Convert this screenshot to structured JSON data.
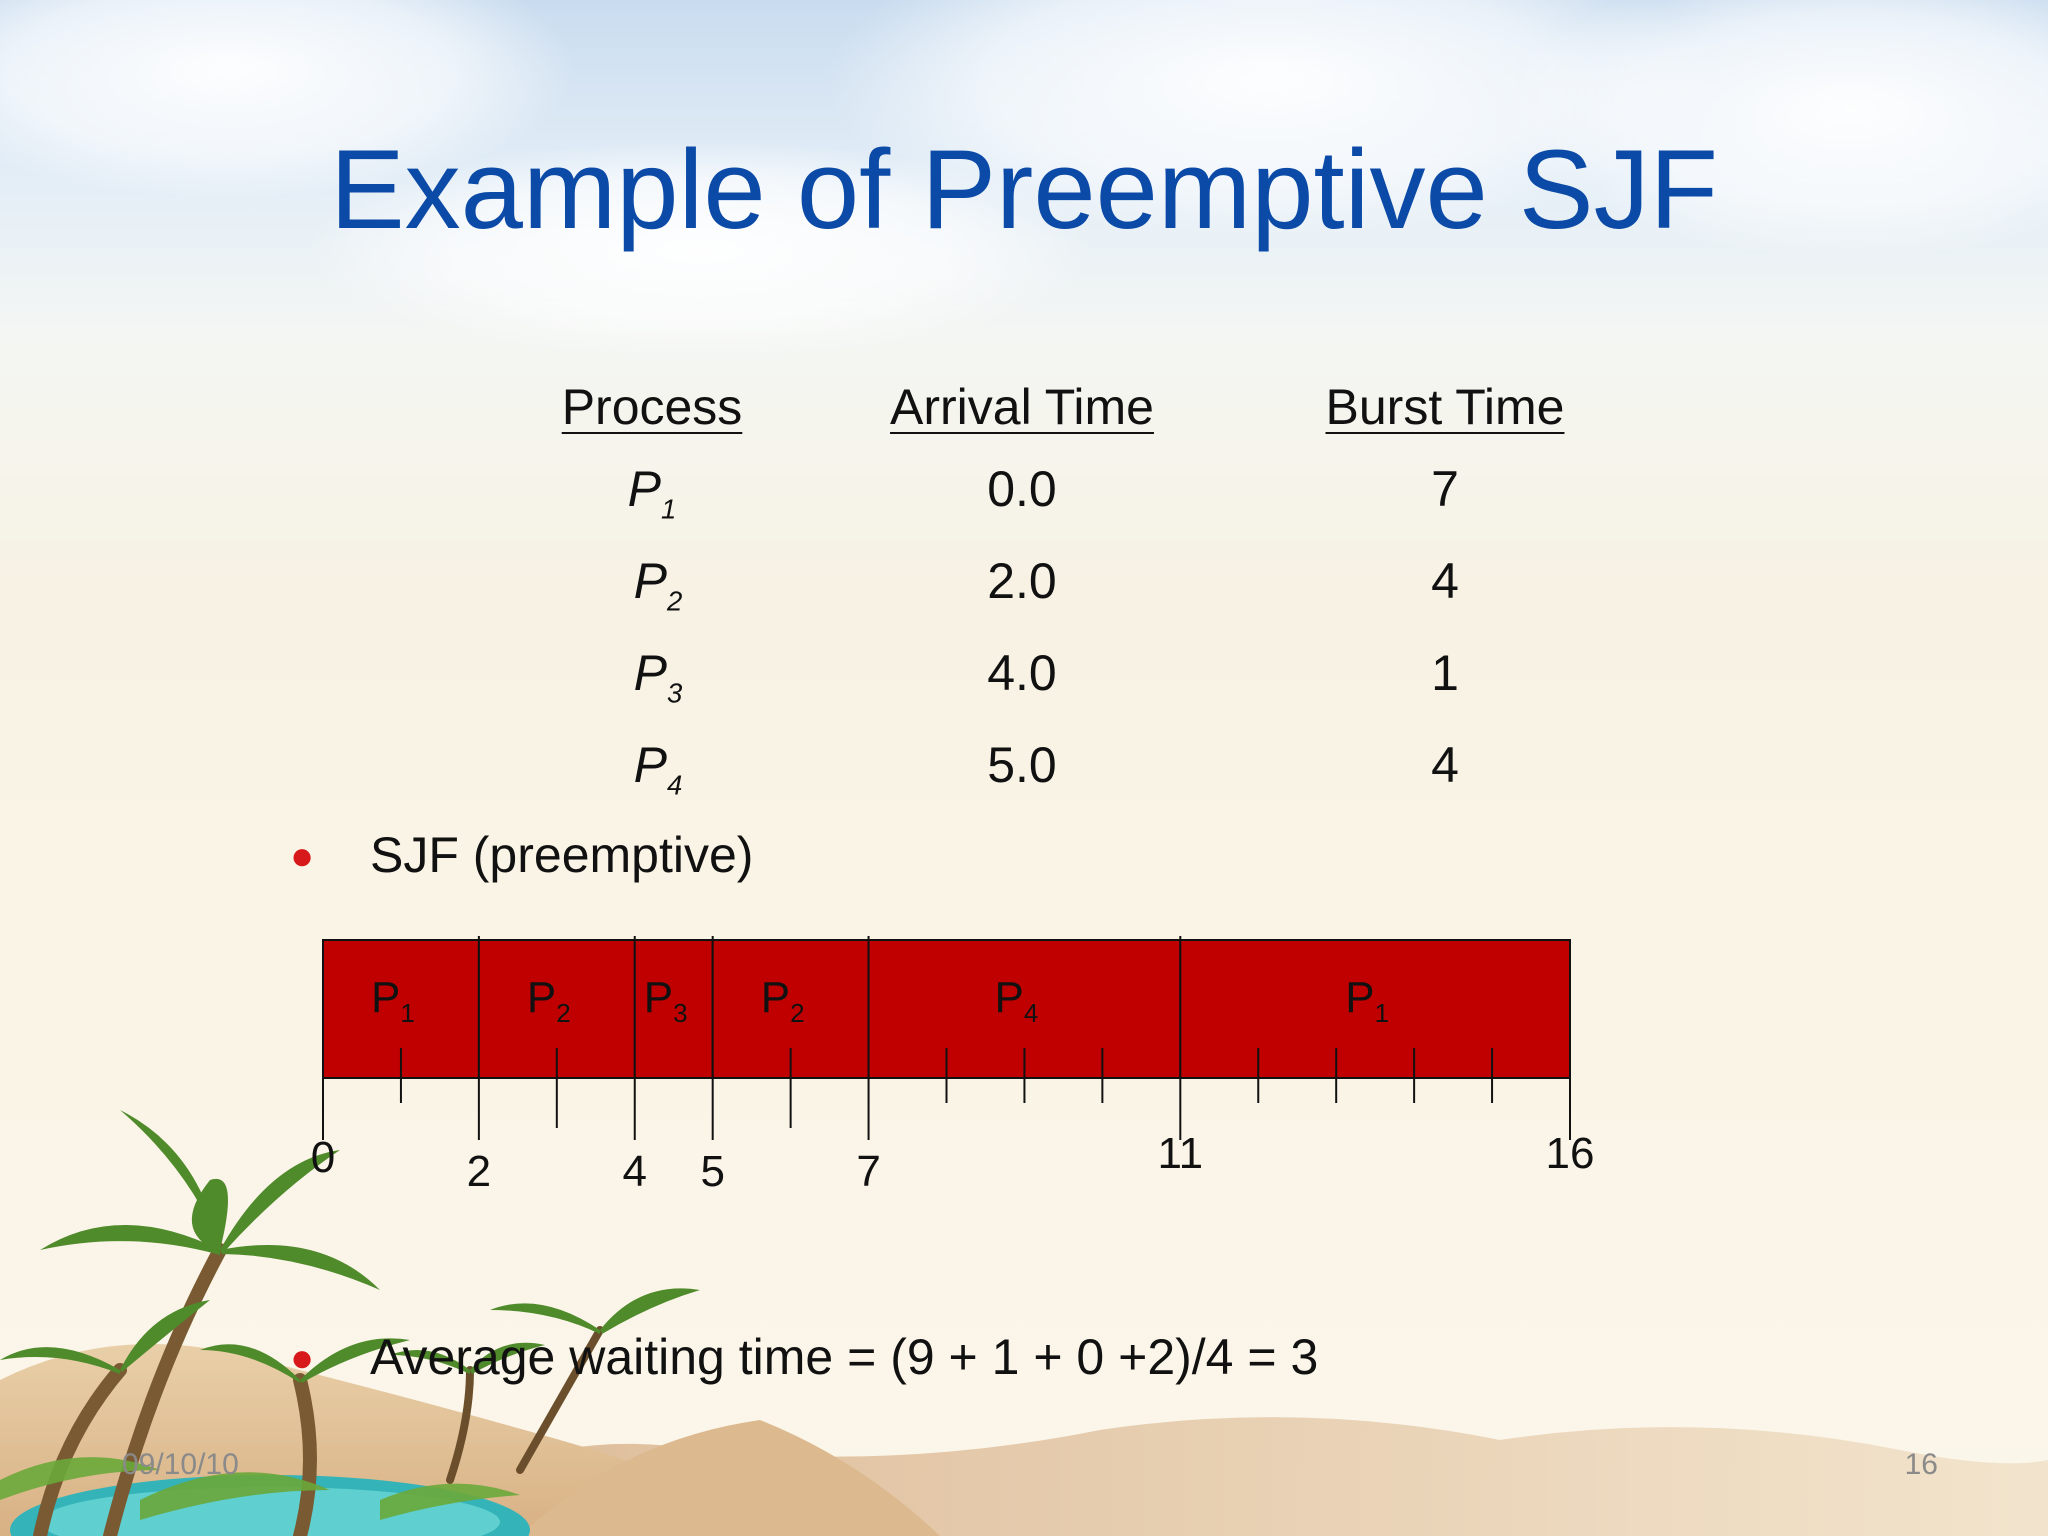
{
  "slide": {
    "title": "Example of Preemptive SJF",
    "table": {
      "headers": [
        "Process",
        "Arrival Time",
        "Burst Time"
      ],
      "rows": [
        {
          "process": "P",
          "sub": "1",
          "arrival": "0.0",
          "burst": "7"
        },
        {
          "process": "P",
          "sub": "2",
          "arrival": "2.0",
          "burst": "4"
        },
        {
          "process": "P",
          "sub": "3",
          "arrival": "4.0",
          "burst": "1"
        },
        {
          "process": "P",
          "sub": "4",
          "arrival": "5.0",
          "burst": "4"
        }
      ]
    },
    "bullets": {
      "sjf": "SJF (preemptive)",
      "avg": "Average waiting time = (9 + 1 + 0 +2)/4 = 3"
    },
    "gantt": {
      "segments": [
        {
          "label": "P",
          "sub": "1",
          "start": 0,
          "end": 2
        },
        {
          "label": "P",
          "sub": "2",
          "start": 2,
          "end": 4
        },
        {
          "label": "P",
          "sub": "3",
          "start": 4,
          "end": 5
        },
        {
          "label": "P",
          "sub": "2",
          "start": 5,
          "end": 7
        },
        {
          "label": "P",
          "sub": "4",
          "start": 7,
          "end": 11
        },
        {
          "label": "P",
          "sub": "1",
          "start": 11,
          "end": 16
        }
      ],
      "time_labels": [
        "0",
        "2",
        "4",
        "5",
        "7",
        "11",
        "16"
      ],
      "bar_color": "#c00000"
    },
    "footer": {
      "date": "09/10/10",
      "page": "16"
    }
  }
}
